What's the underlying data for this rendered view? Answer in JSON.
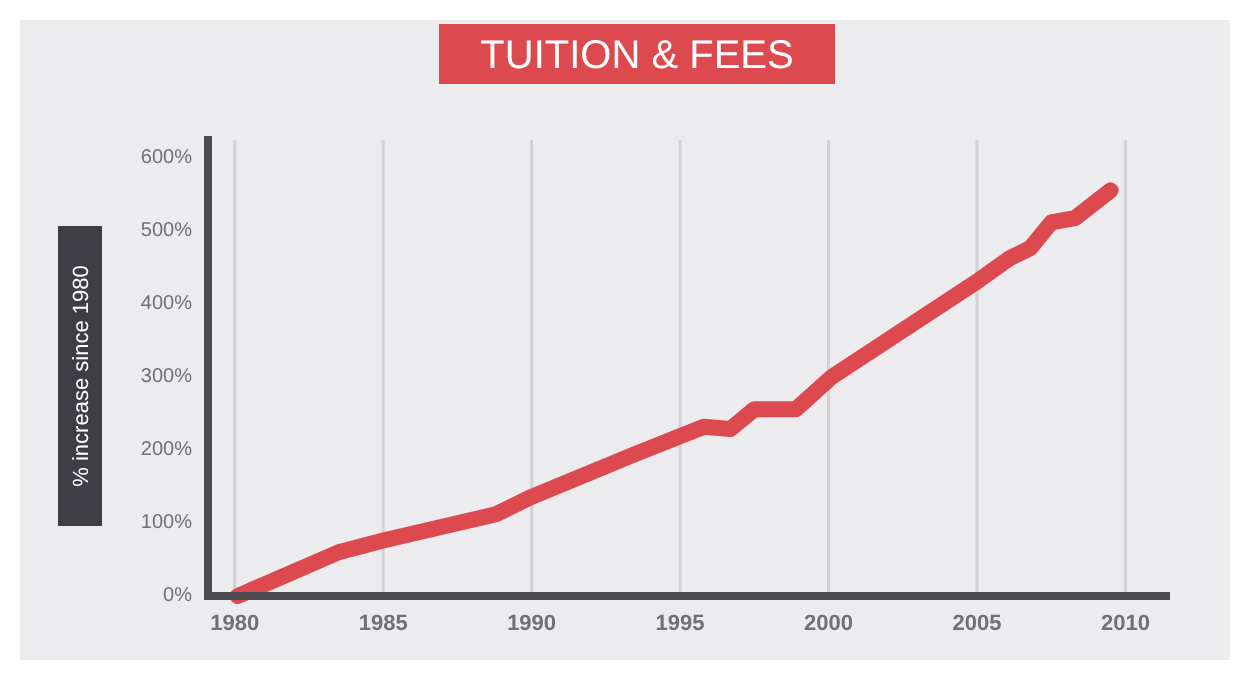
{
  "chart_data": {
    "type": "line",
    "title": "TUITION & FEES",
    "ylabel": "% increase since 1980",
    "xlim": [
      1979.1,
      2011.5
    ],
    "xticks": [
      1980,
      1985,
      1990,
      1995,
      2000,
      2005,
      2010
    ],
    "ylim": [
      0,
      625
    ],
    "yticks": [
      {
        "value": 0,
        "label": "0%"
      },
      {
        "value": 100,
        "label": "100%"
      },
      {
        "value": 200,
        "label": "200%"
      },
      {
        "value": 300,
        "label": "300%"
      },
      {
        "value": 400,
        "label": "400%"
      },
      {
        "value": 500,
        "label": "500%"
      },
      {
        "value": 600,
        "label": "600%"
      }
    ],
    "grid": "x",
    "marker": "none",
    "line_style": "solid",
    "series": [
      {
        "color": "#dc4a4f",
        "x": [
          1980.1,
          1983.5,
          1985,
          1988.8,
          1990,
          1993.4,
          1995.8,
          1996.7,
          1997.5,
          1998.9,
          2000.1,
          2005,
          2006.1,
          2006.8,
          2007.5,
          2008.3,
          2009.5
        ],
        "values": [
          0,
          60,
          76,
          112,
          136,
          193,
          232,
          229,
          256,
          256,
          300,
          431,
          463,
          477,
          512,
          518,
          556
        ]
      }
    ]
  }
}
